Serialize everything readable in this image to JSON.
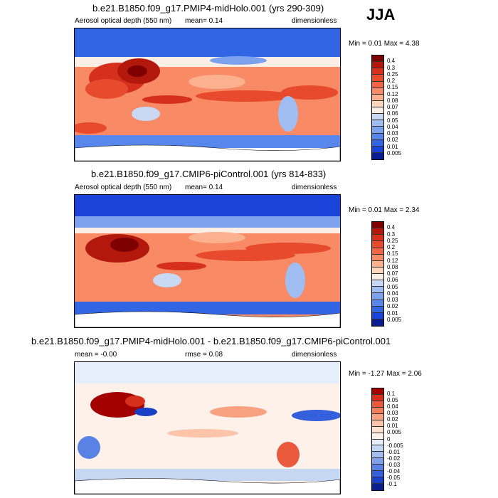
{
  "season": "JJA",
  "chart_data": [
    {
      "type": "heatmap",
      "title": "b.e21.B1850.f09_g17.PMIP4-midHolo.001 (yrs 290-309)",
      "left_label": "Aerosol optical depth (550 nm)",
      "mean_text": "mean=  0.14",
      "units": "dimensionless",
      "minmax": "Min =  0.01 Max =  4.38",
      "levels": [
        "0.4",
        "0.3",
        "0.25",
        "0.2",
        "0.15",
        "0.12",
        "0.08",
        "0.07",
        "0.06",
        "0.05",
        "0.04",
        "0.03",
        "0.02",
        "0.01",
        "0.005"
      ],
      "colors": [
        "#7f0000",
        "#b2180c",
        "#d6301d",
        "#e84a2d",
        "#f26645",
        "#f88a65",
        "#fbb08e",
        "#fdd4bc",
        "#fbeee4",
        "#c9d8f3",
        "#a0bdf1",
        "#7ca2ee",
        "#5786ec",
        "#3265e3",
        "#1a44d9",
        "#081d8f"
      ]
    },
    {
      "type": "heatmap",
      "title": "b.e21.B1850.f09_g17.CMIP6-piControl.001 (yrs 814-833)",
      "left_label": "Aerosol optical depth (550 nm)",
      "mean_text": "mean=  0.14",
      "units": "dimensionless",
      "minmax": "Min =  0.01 Max =  2.34",
      "levels": [
        "0.4",
        "0.3",
        "0.25",
        "0.2",
        "0.15",
        "0.12",
        "0.08",
        "0.07",
        "0.06",
        "0.05",
        "0.04",
        "0.03",
        "0.02",
        "0.01",
        "0.005"
      ],
      "colors": [
        "#7f0000",
        "#b2180c",
        "#d6301d",
        "#e84a2d",
        "#f26645",
        "#f88a65",
        "#fbb08e",
        "#fdd4bc",
        "#fbeee4",
        "#c9d8f3",
        "#a0bdf1",
        "#7ca2ee",
        "#5786ec",
        "#3265e3",
        "#1a44d9",
        "#081d8f"
      ]
    },
    {
      "type": "heatmap",
      "title": "b.e21.B1850.f09_g17.PMIP4-midHolo.001 - b.e21.B1850.f09_g17.CMIP6-piControl.001",
      "left_label": "mean =  -0.00",
      "mean_text": "rmse =  0.08",
      "units": "dimensionless",
      "minmax": "Min =  -1.27 Max =  2.06",
      "levels": [
        "0.1",
        "0.05",
        "0.04",
        "0.03",
        "0.02",
        "0.01",
        "0.005",
        "0",
        "-0.005",
        "-0.01",
        "-0.02",
        "-0.03",
        "-0.04",
        "-0.05",
        "-0.1"
      ],
      "colors": [
        "#a30000",
        "#d6301d",
        "#e95a3c",
        "#f47e5d",
        "#f9a282",
        "#fcc5aa",
        "#fde2d2",
        "#fdf1ea",
        "#e7eefb",
        "#c6d7f4",
        "#a3bdef",
        "#7ea1ea",
        "#5a82e4",
        "#3560dc",
        "#1a40c8",
        "#0a1f8c"
      ]
    }
  ]
}
